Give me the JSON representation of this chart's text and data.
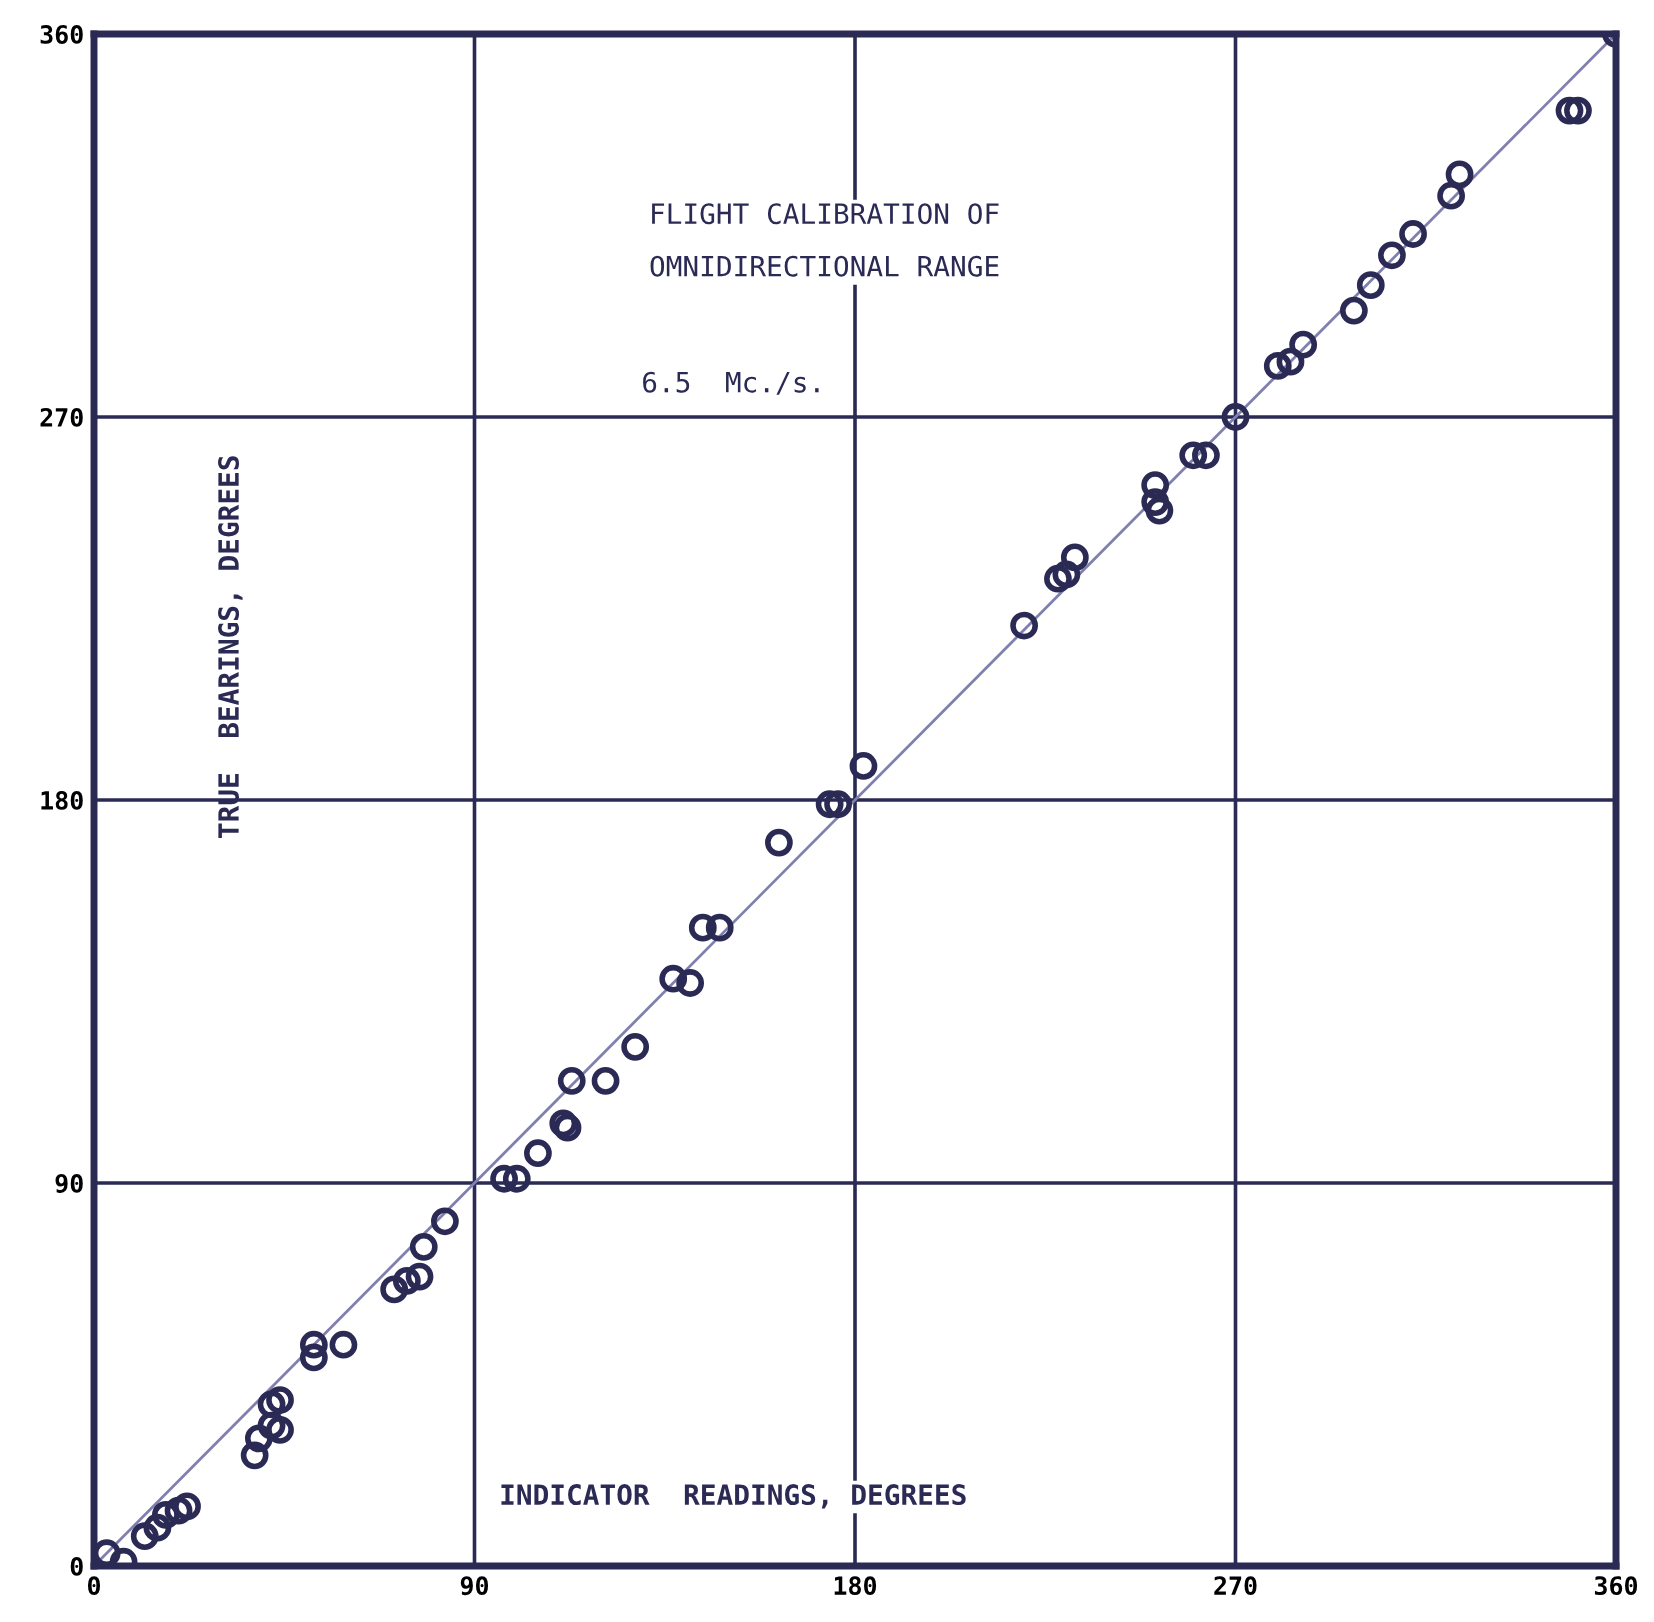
{
  "chart_data": {
    "type": "scatter",
    "title": "FLIGHT CALIBRATION OF\nOMNIDIRECTIONAL RANGE",
    "subtitle": "6.5  Mc./s.",
    "xlabel": "INDICATOR  READINGS, DEGREES",
    "ylabel": "TRUE  BEARINGS, DEGREES",
    "series": [
      {
        "color": "#2a2a55",
        "marker": "circle",
        "x": [
          3,
          7,
          12,
          15,
          17,
          20,
          22,
          38,
          39,
          42,
          44,
          42,
          44,
          52,
          54,
          59,
          52,
          71,
          74,
          77,
          78,
          83,
          97,
          100,
          105,
          112,
          111,
          113,
          121,
          128,
          137,
          141,
          144,
          148,
          162,
          174,
          176,
          182,
          220,
          228,
          230,
          232,
          251,
          252,
          251,
          260,
          263,
          270,
          280,
          283,
          286,
          298,
          302,
          307,
          312,
          321,
          323,
          349,
          351,
          360
        ],
        "values": [
          3,
          1,
          7,
          9,
          12,
          13,
          14,
          26,
          30,
          33,
          32,
          38,
          39,
          49,
          null,
          52,
          52,
          65,
          67,
          68,
          75,
          81,
          91,
          91,
          97,
          103,
          104,
          114,
          114,
          122,
          138,
          137,
          150,
          150,
          170,
          179,
          179,
          188,
          221,
          232,
          233,
          237,
          254,
          248,
          250,
          261,
          261,
          270,
          282,
          283,
          287,
          295,
          301,
          308,
          313,
          322,
          327,
          342,
          342,
          360
        ]
      },
      {
        "type": "line",
        "color": "#8080b0",
        "marker": "none",
        "line_style": "solid",
        "x": [
          0,
          360
        ],
        "values": [
          0,
          360
        ]
      }
    ],
    "xlim": [
      0,
      360
    ],
    "ylim": [
      0,
      360
    ],
    "xticks": [
      0,
      90,
      180,
      270,
      360
    ],
    "yticks": [
      0,
      90,
      180,
      270,
      360
    ],
    "grid": true
  }
}
